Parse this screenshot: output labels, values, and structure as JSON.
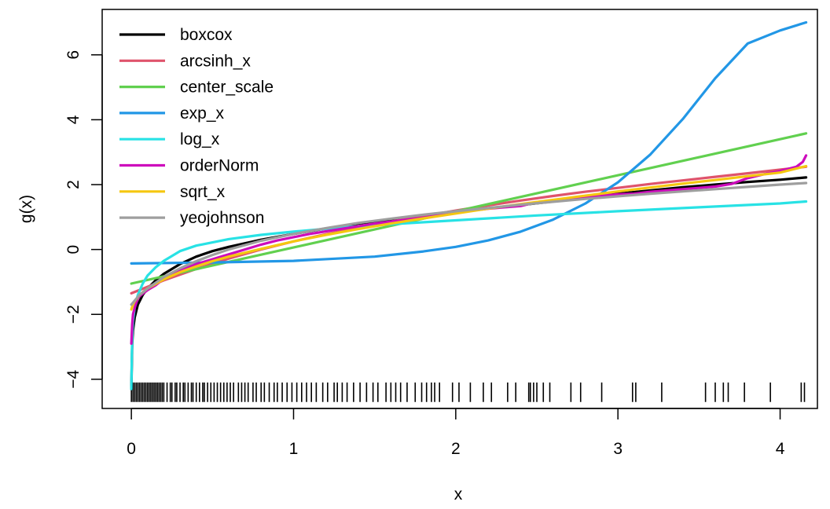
{
  "chart_data": {
    "type": "line",
    "title": "",
    "xlabel": "x",
    "ylabel": "g(x)",
    "xlim": [
      -0.18,
      4.23
    ],
    "ylim": [
      -4.9,
      7.4
    ],
    "xticks": [
      "0",
      "1",
      "2",
      "3",
      "4"
    ],
    "yticks": [
      "−4",
      "−2",
      "0",
      "2",
      "4",
      "6"
    ],
    "grid": false,
    "legend_position": "top-left",
    "series": [
      {
        "name": "boxcox",
        "color": "#000000",
        "points": [
          [
            0,
            -4.3
          ],
          [
            0.005,
            -2.9
          ],
          [
            0.01,
            -2.5
          ],
          [
            0.02,
            -2.1
          ],
          [
            0.04,
            -1.7
          ],
          [
            0.07,
            -1.4
          ],
          [
            0.1,
            -1.2
          ],
          [
            0.15,
            -0.95
          ],
          [
            0.2,
            -0.75
          ],
          [
            0.3,
            -0.45
          ],
          [
            0.4,
            -0.22
          ],
          [
            0.5,
            -0.05
          ],
          [
            0.6,
            0.08
          ],
          [
            0.8,
            0.3
          ],
          [
            1.0,
            0.48
          ],
          [
            1.2,
            0.65
          ],
          [
            1.4,
            0.8
          ],
          [
            1.6,
            0.93
          ],
          [
            1.8,
            1.05
          ],
          [
            2.0,
            1.16
          ],
          [
            2.2,
            1.27
          ],
          [
            2.4,
            1.37
          ],
          [
            2.6,
            1.48
          ],
          [
            2.8,
            1.6
          ],
          [
            3.0,
            1.72
          ],
          [
            3.2,
            1.82
          ],
          [
            3.4,
            1.92
          ],
          [
            3.6,
            2.0
          ],
          [
            3.8,
            2.08
          ],
          [
            4.0,
            2.15
          ],
          [
            4.16,
            2.22
          ]
        ]
      },
      {
        "name": "arcsinh_x",
        "color": "#DF536B",
        "points": [
          [
            0,
            -1.35
          ],
          [
            0.1,
            -1.15
          ],
          [
            0.2,
            -0.95
          ],
          [
            0.4,
            -0.6
          ],
          [
            0.6,
            -0.28
          ],
          [
            0.8,
            0.0
          ],
          [
            1.0,
            0.25
          ],
          [
            1.2,
            0.47
          ],
          [
            1.4,
            0.67
          ],
          [
            1.6,
            0.86
          ],
          [
            1.8,
            1.03
          ],
          [
            2.0,
            1.2
          ],
          [
            2.2,
            1.36
          ],
          [
            2.4,
            1.51
          ],
          [
            2.6,
            1.65
          ],
          [
            2.8,
            1.78
          ],
          [
            3.0,
            1.9
          ],
          [
            3.2,
            2.02
          ],
          [
            3.4,
            2.13
          ],
          [
            3.6,
            2.24
          ],
          [
            3.8,
            2.35
          ],
          [
            4.0,
            2.46
          ],
          [
            4.16,
            2.55
          ]
        ]
      },
      {
        "name": "center_scale",
        "color": "#61D04F",
        "points": [
          [
            0,
            -1.05
          ],
          [
            4.16,
            3.58
          ]
        ]
      },
      {
        "name": "exp_x",
        "color": "#2297E6",
        "points": [
          [
            0,
            -0.43
          ],
          [
            0.5,
            -0.4
          ],
          [
            1.0,
            -0.35
          ],
          [
            1.5,
            -0.22
          ],
          [
            1.8,
            -0.06
          ],
          [
            2.0,
            0.08
          ],
          [
            2.2,
            0.28
          ],
          [
            2.4,
            0.55
          ],
          [
            2.6,
            0.92
          ],
          [
            2.8,
            1.42
          ],
          [
            3.0,
            2.07
          ],
          [
            3.2,
            2.93
          ],
          [
            3.4,
            4.02
          ],
          [
            3.6,
            5.28
          ],
          [
            3.8,
            6.35
          ],
          [
            4.0,
            6.75
          ],
          [
            4.16,
            7.0
          ]
        ]
      },
      {
        "name": "log_x",
        "color": "#28E2E5",
        "points": [
          [
            0,
            -4.3
          ],
          [
            0.003,
            -3.2
          ],
          [
            0.006,
            -2.6
          ],
          [
            0.01,
            -2.2
          ],
          [
            0.02,
            -1.8
          ],
          [
            0.04,
            -1.4
          ],
          [
            0.07,
            -1.05
          ],
          [
            0.1,
            -0.8
          ],
          [
            0.15,
            -0.55
          ],
          [
            0.2,
            -0.35
          ],
          [
            0.3,
            -0.05
          ],
          [
            0.4,
            0.12
          ],
          [
            0.6,
            0.32
          ],
          [
            0.8,
            0.45
          ],
          [
            1.0,
            0.55
          ],
          [
            1.3,
            0.68
          ],
          [
            1.6,
            0.78
          ],
          [
            2.0,
            0.9
          ],
          [
            2.5,
            1.05
          ],
          [
            3.0,
            1.18
          ],
          [
            3.5,
            1.3
          ],
          [
            4.0,
            1.42
          ],
          [
            4.16,
            1.48
          ]
        ]
      },
      {
        "name": "orderNorm",
        "color": "#CD0BBC",
        "points": [
          [
            0,
            -2.9
          ],
          [
            0.005,
            -2.3
          ],
          [
            0.01,
            -2.0
          ],
          [
            0.02,
            -1.8
          ],
          [
            0.04,
            -1.5
          ],
          [
            0.06,
            -1.4
          ],
          [
            0.1,
            -1.25
          ],
          [
            0.15,
            -1.1
          ],
          [
            0.2,
            -0.9
          ],
          [
            0.25,
            -0.75
          ],
          [
            0.3,
            -0.65
          ],
          [
            0.4,
            -0.45
          ],
          [
            0.5,
            -0.3
          ],
          [
            0.6,
            -0.15
          ],
          [
            0.7,
            0.0
          ],
          [
            0.8,
            0.15
          ],
          [
            0.9,
            0.28
          ],
          [
            1.0,
            0.38
          ],
          [
            1.1,
            0.48
          ],
          [
            1.2,
            0.56
          ],
          [
            1.3,
            0.64
          ],
          [
            1.4,
            0.72
          ],
          [
            1.5,
            0.8
          ],
          [
            1.6,
            0.86
          ],
          [
            1.7,
            0.92
          ],
          [
            1.8,
            0.98
          ],
          [
            1.9,
            1.06
          ],
          [
            2.0,
            1.12
          ],
          [
            2.1,
            1.2
          ],
          [
            2.2,
            1.26
          ],
          [
            2.3,
            1.3
          ],
          [
            2.4,
            1.34
          ],
          [
            2.5,
            1.46
          ],
          [
            2.6,
            1.52
          ],
          [
            2.7,
            1.58
          ],
          [
            2.8,
            1.62
          ],
          [
            2.9,
            1.66
          ],
          [
            3.0,
            1.7
          ],
          [
            3.1,
            1.72
          ],
          [
            3.2,
            1.78
          ],
          [
            3.3,
            1.82
          ],
          [
            3.4,
            1.86
          ],
          [
            3.5,
            1.9
          ],
          [
            3.6,
            1.94
          ],
          [
            3.7,
            2.02
          ],
          [
            3.8,
            2.2
          ],
          [
            3.9,
            2.32
          ],
          [
            4.0,
            2.42
          ],
          [
            4.1,
            2.55
          ],
          [
            4.14,
            2.7
          ],
          [
            4.16,
            2.9
          ]
        ]
      },
      {
        "name": "sqrt_x",
        "color": "#F5C710",
        "points": [
          [
            0,
            -1.85
          ],
          [
            0.01,
            -1.7
          ],
          [
            0.02,
            -1.6
          ],
          [
            0.05,
            -1.4
          ],
          [
            0.1,
            -1.2
          ],
          [
            0.2,
            -0.92
          ],
          [
            0.3,
            -0.7
          ],
          [
            0.4,
            -0.52
          ],
          [
            0.5,
            -0.36
          ],
          [
            0.6,
            -0.22
          ],
          [
            0.8,
            0.02
          ],
          [
            1.0,
            0.25
          ],
          [
            1.2,
            0.45
          ],
          [
            1.4,
            0.63
          ],
          [
            1.6,
            0.8
          ],
          [
            1.8,
            0.96
          ],
          [
            2.0,
            1.11
          ],
          [
            2.2,
            1.26
          ],
          [
            2.4,
            1.4
          ],
          [
            2.6,
            1.53
          ],
          [
            2.8,
            1.66
          ],
          [
            3.0,
            1.79
          ],
          [
            3.2,
            1.91
          ],
          [
            3.4,
            2.03
          ],
          [
            3.6,
            2.14
          ],
          [
            3.8,
            2.26
          ],
          [
            4.0,
            2.37
          ],
          [
            4.16,
            2.57
          ]
        ]
      },
      {
        "name": "yeojohnson",
        "color": "#9E9E9E",
        "points": [
          [
            0,
            -1.7
          ],
          [
            0.05,
            -1.4
          ],
          [
            0.1,
            -1.2
          ],
          [
            0.2,
            -0.85
          ],
          [
            0.3,
            -0.58
          ],
          [
            0.4,
            -0.36
          ],
          [
            0.5,
            -0.17
          ],
          [
            0.6,
            0.0
          ],
          [
            0.8,
            0.27
          ],
          [
            1.0,
            0.48
          ],
          [
            1.2,
            0.66
          ],
          [
            1.4,
            0.82
          ],
          [
            1.6,
            0.95
          ],
          [
            1.8,
            1.07
          ],
          [
            2.0,
            1.18
          ],
          [
            2.2,
            1.28
          ],
          [
            2.4,
            1.38
          ],
          [
            2.6,
            1.47
          ],
          [
            2.8,
            1.56
          ],
          [
            3.0,
            1.64
          ],
          [
            3.2,
            1.72
          ],
          [
            3.4,
            1.79
          ],
          [
            3.6,
            1.86
          ],
          [
            3.8,
            1.93
          ],
          [
            4.0,
            2.0
          ],
          [
            4.16,
            2.05
          ]
        ]
      }
    ],
    "rug": {
      "y_bottom": -4.1,
      "y_top": -4.7,
      "x": [
        0.0,
        0.01,
        0.02,
        0.03,
        0.04,
        0.05,
        0.06,
        0.07,
        0.08,
        0.09,
        0.1,
        0.11,
        0.12,
        0.13,
        0.14,
        0.15,
        0.16,
        0.17,
        0.18,
        0.19,
        0.2,
        0.22,
        0.24,
        0.25,
        0.27,
        0.28,
        0.3,
        0.32,
        0.33,
        0.35,
        0.37,
        0.38,
        0.4,
        0.42,
        0.44,
        0.45,
        0.47,
        0.49,
        0.51,
        0.53,
        0.55,
        0.57,
        0.59,
        0.61,
        0.63,
        0.66,
        0.68,
        0.7,
        0.72,
        0.75,
        0.77,
        0.8,
        0.82,
        0.85,
        0.88,
        0.9,
        0.93,
        0.96,
        0.99,
        1.02,
        1.05,
        1.08,
        1.11,
        1.14,
        1.18,
        1.21,
        1.25,
        1.27,
        1.3,
        1.33,
        1.37,
        1.41,
        1.45,
        1.49,
        1.52,
        1.57,
        1.6,
        1.63,
        1.66,
        1.7,
        1.75,
        1.79,
        1.82,
        1.85,
        1.87,
        1.9,
        1.98,
        2.02,
        2.09,
        2.17,
        2.22,
        2.32,
        2.37,
        2.45,
        2.46,
        2.48,
        2.5,
        2.54,
        2.58,
        2.71,
        2.77,
        2.9,
        3.09,
        3.11,
        3.27,
        3.54,
        3.6,
        3.65,
        3.68,
        3.78,
        3.94,
        4.13,
        4.15
      ]
    }
  }
}
